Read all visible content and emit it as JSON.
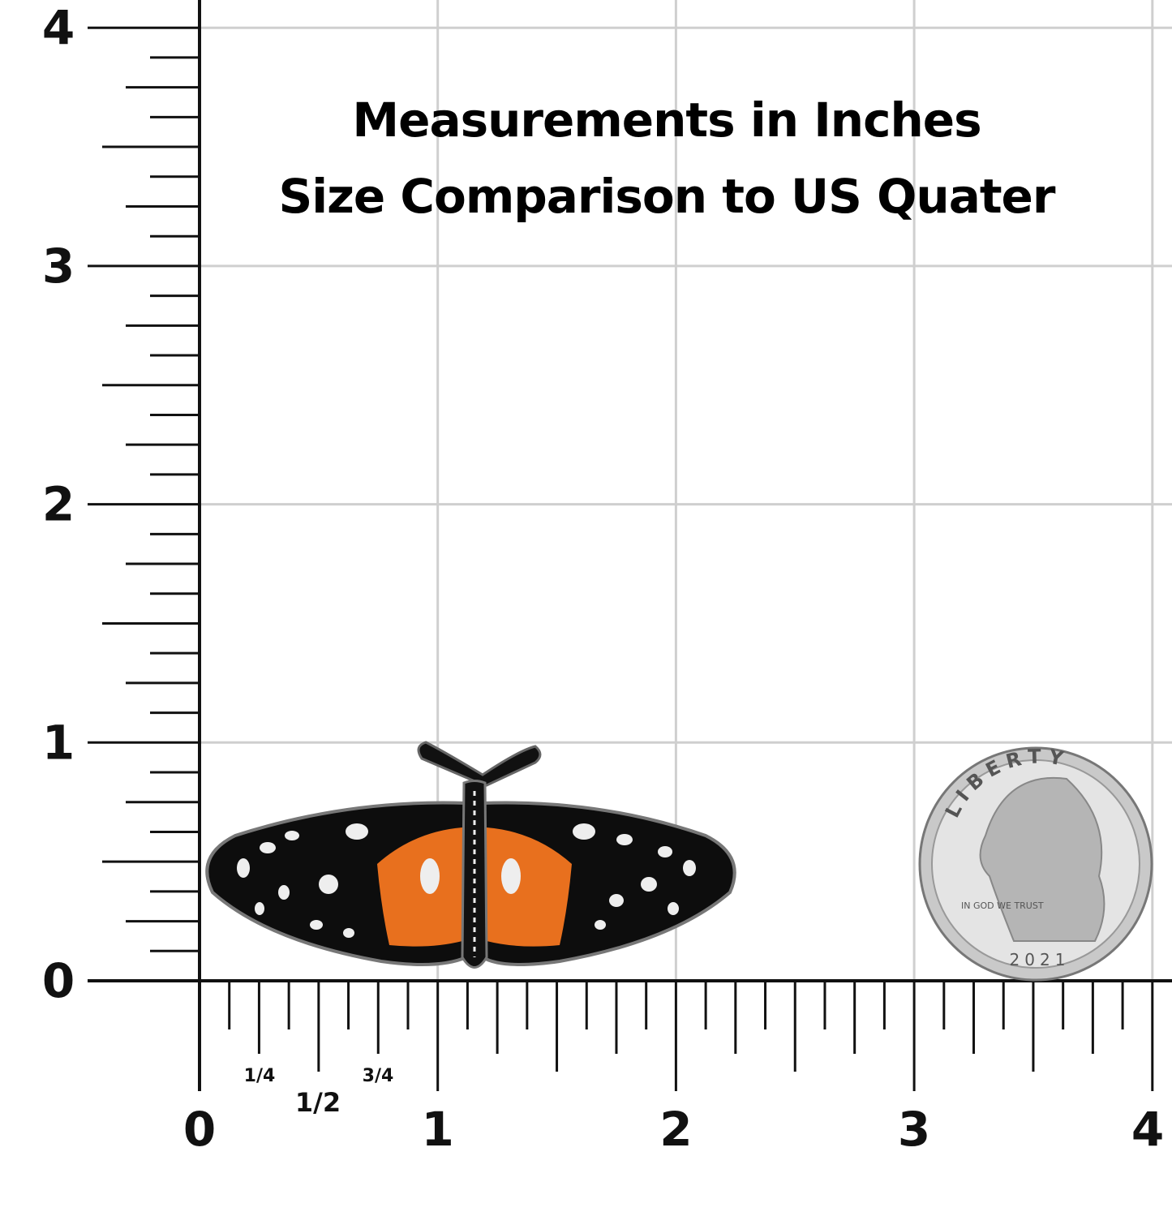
{
  "header": {
    "lines": [
      "Measurements in Inches",
      "Size Comparison to US Quater"
    ]
  },
  "ruler": {
    "y_labels": [
      "0",
      "1",
      "2",
      "3",
      "4"
    ],
    "x_labels": [
      "0",
      "1",
      "2",
      "3",
      "4"
    ],
    "fractions": [
      "1/4",
      "1/2",
      "3/4"
    ]
  },
  "coin": {
    "inscriptions": [
      "LIBERTY",
      "IN GOD WE TRUST",
      "2021"
    ]
  }
}
